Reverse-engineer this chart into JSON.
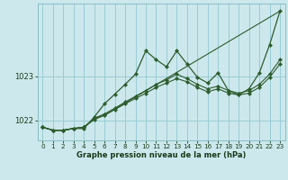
{
  "title": "",
  "xlabel": "Graphe pression niveau de la mer (hPa)",
  "background_color": "#cce8ec",
  "grid_color": "#99ccd4",
  "line_color": "#2d5c2d",
  "x_ticks": [
    0,
    1,
    2,
    3,
    4,
    5,
    6,
    7,
    8,
    9,
    10,
    11,
    12,
    13,
    14,
    15,
    16,
    17,
    18,
    19,
    20,
    21,
    22,
    23
  ],
  "ylim": [
    1021.55,
    1024.65
  ],
  "yticks": [
    1022,
    1023
  ],
  "xlim": [
    -0.5,
    23.5
  ],
  "series1_x": [
    0,
    1,
    2,
    3,
    4,
    5,
    6,
    7,
    8,
    9,
    10,
    11,
    12,
    13,
    14,
    15,
    16,
    17,
    18,
    19,
    20,
    21,
    22,
    23
  ],
  "series1_y": [
    1021.85,
    1021.78,
    1021.78,
    1021.82,
    1021.82,
    1022.08,
    1022.38,
    1022.6,
    1022.82,
    1023.05,
    1023.58,
    1023.38,
    1023.22,
    1023.58,
    1023.28,
    1022.98,
    1022.85,
    1023.08,
    1022.68,
    1022.58,
    1022.72,
    1023.08,
    1023.72,
    1024.48
  ],
  "series2_x": [
    0,
    1,
    2,
    3,
    4,
    5,
    6,
    23
  ],
  "series2_y": [
    1021.85,
    1021.78,
    1021.78,
    1021.82,
    1021.85,
    1022.05,
    1022.12,
    1024.48
  ],
  "series3_x": [
    0,
    1,
    2,
    3,
    4,
    5,
    6,
    7,
    8,
    9,
    10,
    11,
    12,
    13,
    14,
    15,
    16,
    17,
    18,
    19,
    20,
    21,
    22,
    23
  ],
  "series3_y": [
    1021.85,
    1021.78,
    1021.78,
    1021.82,
    1021.85,
    1022.05,
    1022.15,
    1022.28,
    1022.42,
    1022.55,
    1022.68,
    1022.82,
    1022.92,
    1023.05,
    1022.95,
    1022.82,
    1022.72,
    1022.78,
    1022.68,
    1022.62,
    1022.68,
    1022.82,
    1023.05,
    1023.38
  ],
  "series4_x": [
    0,
    1,
    2,
    3,
    4,
    5,
    6,
    7,
    8,
    9,
    10,
    11,
    12,
    13,
    14,
    15,
    16,
    17,
    18,
    19,
    20,
    21,
    22,
    23
  ],
  "series4_y": [
    1021.85,
    1021.78,
    1021.78,
    1021.82,
    1021.85,
    1022.02,
    1022.12,
    1022.25,
    1022.38,
    1022.5,
    1022.62,
    1022.75,
    1022.85,
    1022.95,
    1022.88,
    1022.75,
    1022.65,
    1022.72,
    1022.62,
    1022.58,
    1022.62,
    1022.75,
    1022.98,
    1023.28
  ]
}
